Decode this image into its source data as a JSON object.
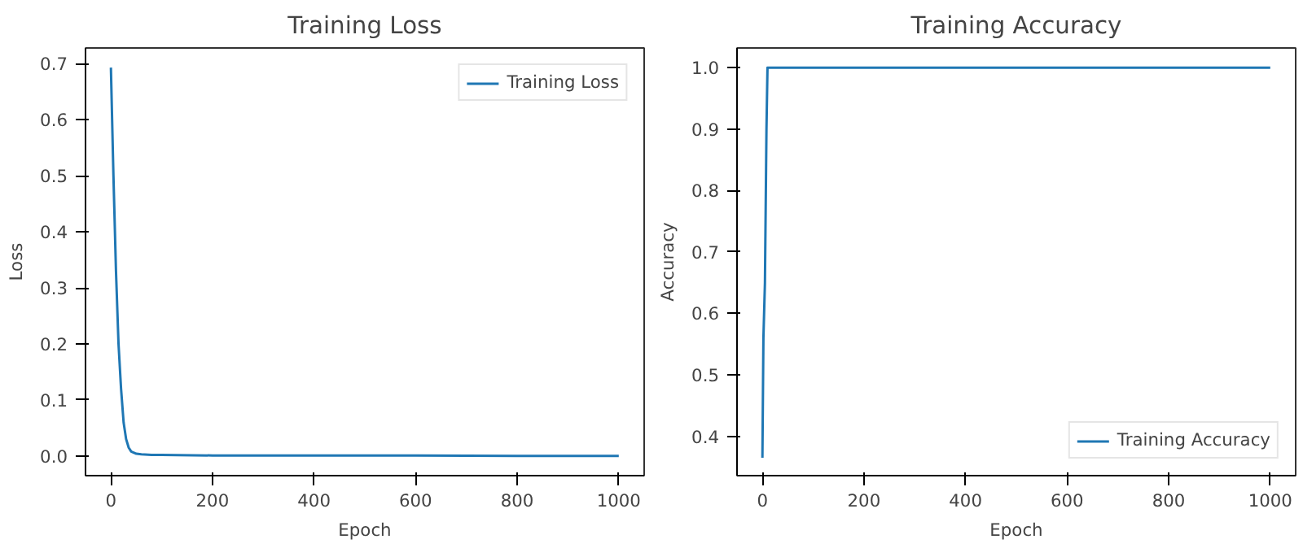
{
  "chart_data": [
    {
      "type": "line",
      "title": "Training Loss",
      "xlabel": "Epoch",
      "ylabel": "Loss",
      "x": [
        0,
        5,
        10,
        15,
        20,
        25,
        30,
        35,
        40,
        50,
        60,
        80,
        100,
        200,
        400,
        600,
        800,
        1000
      ],
      "series": [
        {
          "name": "Training Loss",
          "color": "#1f77b4",
          "values": [
            0.693,
            0.5,
            0.33,
            0.2,
            0.12,
            0.06,
            0.03,
            0.015,
            0.008,
            0.004,
            0.003,
            0.002,
            0.002,
            0.001,
            0.001,
            0.001,
            0.0,
            0.0
          ]
        }
      ],
      "xlim": [
        -50,
        1050
      ],
      "ylim": [
        -0.035,
        0.728
      ],
      "xticks": [
        0,
        200,
        400,
        600,
        800,
        1000
      ],
      "yticks": [
        {
          "value": 0,
          "label": "0.0"
        },
        0.1,
        0.2,
        0.3,
        0.4,
        0.5,
        0.6,
        0.7
      ],
      "grid": false,
      "legend": "top right"
    },
    {
      "type": "line",
      "title": "Training Accuracy",
      "xlabel": "Epoch",
      "ylabel": "Accuracy",
      "x": [
        0,
        2,
        5,
        8,
        10,
        15,
        100,
        1000
      ],
      "series": [
        {
          "name": "Training Accuracy",
          "color": "#1f77b4",
          "values": [
            0.365,
            0.56,
            0.65,
            0.9,
            1.0,
            1.0,
            1.0,
            1.0
          ]
        }
      ],
      "xlim": [
        -50,
        1050
      ],
      "ylim": [
        0.336,
        1.032
      ],
      "xticks": [
        0,
        200,
        400,
        600,
        800,
        1000
      ],
      "yticks": [
        0.4,
        0.5,
        0.6,
        0.7,
        0.8,
        0.9,
        {
          "value": 1,
          "label": "1.0"
        }
      ],
      "grid": false,
      "legend": "bottom right"
    }
  ]
}
